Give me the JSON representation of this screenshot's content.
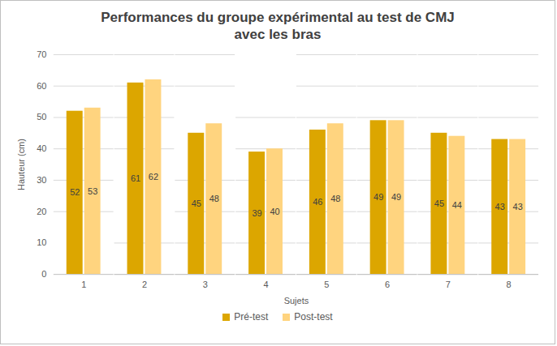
{
  "chart_data": {
    "type": "bar",
    "title": "Performances du groupe expérimental au test de CMJ avec les bras",
    "x_label": "Sujets",
    "y_label": "Hauteur (cm)",
    "categories": [
      "1",
      "2",
      "3",
      "4",
      "5",
      "6",
      "7",
      "8"
    ],
    "series": [
      {
        "name": "Pré-test",
        "color": "#dca600",
        "values": [
          52,
          61,
          45,
          39,
          46,
          49,
          45,
          43
        ]
      },
      {
        "name": "Post-test",
        "color": "#ffd47f",
        "values": [
          53,
          62,
          48,
          40,
          48,
          49,
          44,
          43
        ]
      }
    ],
    "ylim": [
      0,
      70
    ],
    "yticks": [
      0,
      10,
      20,
      30,
      40,
      50,
      60,
      70
    ],
    "grid": true,
    "legend": "bottom",
    "data_labels": true
  }
}
